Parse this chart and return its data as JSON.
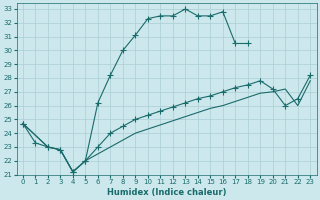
{
  "xlabel": "Humidex (Indice chaleur)",
  "bg_color": "#cce8ec",
  "grid_color": "#aacdd5",
  "line_color": "#1a6b6b",
  "xlim": [
    0,
    23
  ],
  "ylim": [
    21,
    33
  ],
  "xticks": [
    0,
    1,
    2,
    3,
    4,
    5,
    6,
    7,
    8,
    9,
    10,
    11,
    12,
    13,
    14,
    15,
    16,
    17,
    18,
    19,
    20,
    21,
    22,
    23
  ],
  "yticks": [
    21,
    22,
    23,
    24,
    25,
    26,
    27,
    28,
    29,
    30,
    31,
    32,
    33
  ],
  "line1_x": [
    0,
    1,
    2,
    3,
    4,
    5,
    6,
    7,
    8,
    9,
    10,
    11,
    12,
    13,
    14,
    15,
    16,
    17,
    18
  ],
  "line1_y": [
    24.7,
    23.3,
    23.0,
    22.8,
    21.2,
    22.0,
    26.2,
    28.2,
    30.0,
    31.1,
    32.3,
    32.5,
    32.5,
    33.0,
    32.5,
    32.5,
    32.8,
    30.5,
    30.5
  ],
  "line2_x": [
    0,
    2,
    3,
    4,
    5,
    6,
    7,
    8,
    9,
    10,
    11,
    12,
    13,
    14,
    15,
    16,
    17,
    18,
    19,
    20,
    21,
    22,
    23
  ],
  "line2_y": [
    24.7,
    23.0,
    22.8,
    21.2,
    22.0,
    23.0,
    24.0,
    24.5,
    25.0,
    25.3,
    25.6,
    25.9,
    26.2,
    26.5,
    26.7,
    27.0,
    27.3,
    27.5,
    27.8,
    27.2,
    26.0,
    26.5,
    28.2
  ],
  "line3_x": [
    0,
    2,
    3,
    4,
    5,
    6,
    7,
    8,
    9,
    10,
    11,
    12,
    13,
    14,
    15,
    16,
    17,
    18,
    19,
    20,
    21,
    22,
    23
  ],
  "line3_y": [
    24.7,
    23.0,
    22.8,
    21.2,
    22.0,
    22.5,
    23.0,
    23.5,
    24.0,
    24.3,
    24.6,
    24.9,
    25.2,
    25.5,
    25.8,
    26.0,
    26.3,
    26.6,
    26.9,
    27.0,
    27.2,
    26.0,
    27.8
  ]
}
